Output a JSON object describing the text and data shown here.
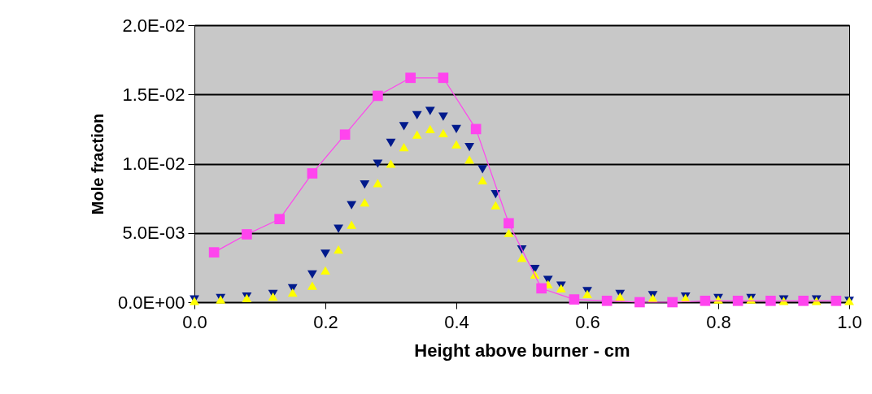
{
  "chart_data": {
    "type": "scatter",
    "xlabel": "Height above burner - cm",
    "ylabel": "Mole fraction",
    "xlim": [
      0,
      1
    ],
    "ylim": [
      0,
      0.02
    ],
    "xticks": [
      {
        "value": 0,
        "label": "0.0"
      },
      {
        "value": 0.2,
        "label": "0.2"
      },
      {
        "value": 0.4,
        "label": "0.4"
      },
      {
        "value": 0.6,
        "label": "0.6"
      },
      {
        "value": 0.8,
        "label": "0.8"
      },
      {
        "value": 1,
        "label": "1.0"
      }
    ],
    "yticks": [
      {
        "value": 0,
        "label": "0.0E+00"
      },
      {
        "value": 0.005,
        "label": "5.0E-03"
      },
      {
        "value": 0.01,
        "label": "1.0E-02"
      },
      {
        "value": 0.015,
        "label": "1.5E-02"
      },
      {
        "value": 0.02,
        "label": "2.0E-02"
      }
    ],
    "grid": "y",
    "series": [
      {
        "marker": "triangle-down",
        "color": "#001a8c",
        "x": [
          0,
          0.04,
          0.08,
          0.12,
          0.15,
          0.18,
          0.2,
          0.22,
          0.24,
          0.26,
          0.28,
          0.3,
          0.32,
          0.34,
          0.36,
          0.38,
          0.4,
          0.42,
          0.44,
          0.46,
          0.48,
          0.5,
          0.52,
          0.54,
          0.56,
          0.6,
          0.65,
          0.7,
          0.75,
          0.8,
          0.85,
          0.9,
          0.95,
          1
        ],
        "values": [
          0.0002,
          0.0003,
          0.0004,
          0.0006,
          0.001,
          0.002,
          0.0035,
          0.0053,
          0.007,
          0.0085,
          0.01,
          0.0115,
          0.0127,
          0.0135,
          0.0138,
          0.0134,
          0.0125,
          0.0112,
          0.0096,
          0.0078,
          null,
          0.0038,
          0.0024,
          0.0016,
          0.0012,
          0.0008,
          0.0006,
          0.0005,
          0.0004,
          0.0003,
          0.0003,
          0.0002,
          0.0002,
          0.0001
        ]
      },
      {
        "marker": "triangle",
        "color": "#ffff00",
        "x": [
          0,
          0.04,
          0.08,
          0.12,
          0.15,
          0.18,
          0.2,
          0.22,
          0.24,
          0.26,
          0.28,
          0.3,
          0.32,
          0.34,
          0.36,
          0.38,
          0.4,
          0.42,
          0.44,
          0.46,
          0.48,
          0.5,
          0.52,
          0.54,
          0.56,
          0.6,
          0.65,
          0.7,
          0.75,
          0.8,
          0.85,
          0.9,
          0.95,
          1
        ],
        "values": [
          0.0001,
          0.0002,
          0.0003,
          0.0004,
          0.0007,
          0.0012,
          0.0023,
          0.0038,
          0.0056,
          0.0072,
          0.0086,
          0.01,
          0.0112,
          0.0121,
          0.0125,
          0.0122,
          0.0114,
          0.0103,
          0.0088,
          0.007,
          0.005,
          0.0032,
          0.002,
          0.0013,
          0.001,
          0.0006,
          0.0004,
          0.0003,
          0.0003,
          0.0002,
          0.0002,
          0.0001,
          0.0001,
          0.0001
        ]
      },
      {
        "type": "line",
        "marker": "square",
        "color": "#ff44ee",
        "x": [
          0.03,
          0.08,
          0.13,
          0.18,
          0.23,
          0.28,
          0.33,
          0.38,
          0.43,
          0.48,
          0.53,
          0.58,
          0.63,
          0.68,
          0.73,
          0.78,
          0.83,
          0.88,
          0.93,
          0.98
        ],
        "values": [
          0.0036,
          0.0049,
          0.006,
          0.0093,
          0.0121,
          0.0149,
          0.0162,
          0.0162,
          0.0125,
          0.0057,
          0.001,
          0.0002,
          0.0001,
          0,
          0,
          0.0001,
          0.0001,
          0.0001,
          0.0001,
          0.0001
        ]
      }
    ]
  }
}
